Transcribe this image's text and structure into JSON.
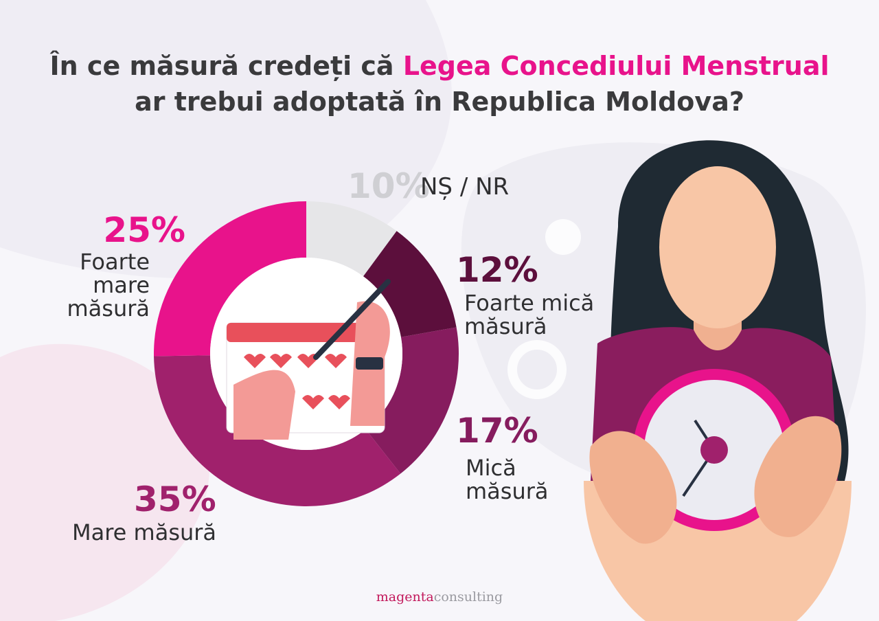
{
  "chart_data": {
    "type": "pie",
    "title": {
      "before": "În ce măsură credeți că",
      "highlight": "Legea Concediului Menstrual",
      "after": "ar trebui adoptată în Republica Moldova?"
    },
    "categories": [
      "NȘ / NR",
      "Foarte mică măsură",
      "Mică măsură",
      "Mare măsură",
      "Foarte mare măsură"
    ],
    "values": [
      10,
      12,
      17,
      35,
      25
    ],
    "value_labels": [
      "10%",
      "12%",
      "17%",
      "35%",
      "25%"
    ],
    "colors": [
      "#e6e6e8",
      "#5c0f3c",
      "#861c5e",
      "#a0216c",
      "#e8138b"
    ],
    "footer": [
      "magenta",
      "consulting"
    ]
  }
}
